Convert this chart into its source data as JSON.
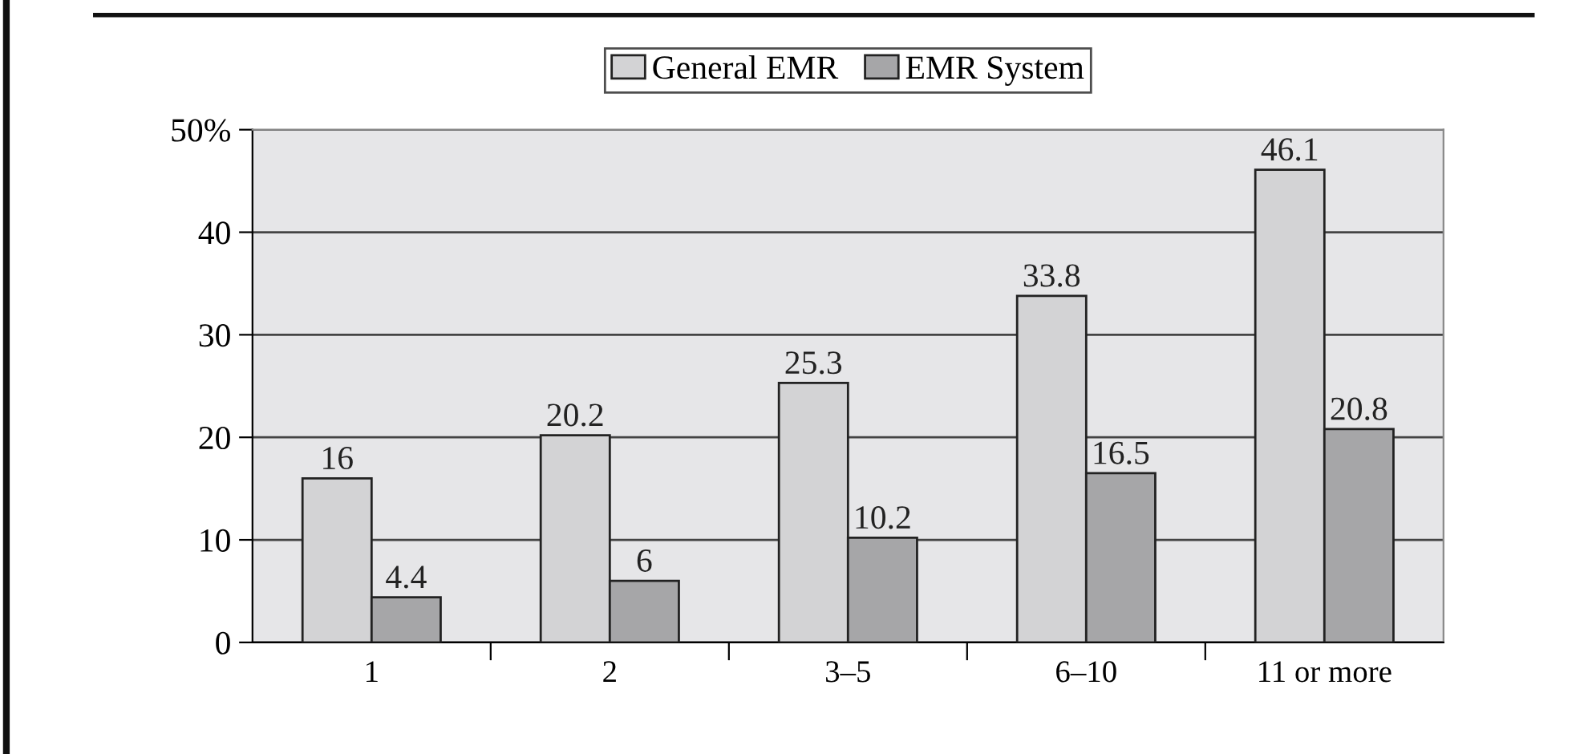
{
  "chart_data": {
    "type": "bar",
    "categories": [
      "1",
      "2",
      "3–5",
      "6–10",
      "11 or more"
    ],
    "series": [
      {
        "name": "General EMR",
        "color": "#d3d3d5",
        "values": [
          16,
          20.2,
          25.3,
          33.8,
          46.1
        ]
      },
      {
        "name": "EMR System",
        "color": "#a6a6a8",
        "values": [
          4.4,
          6,
          10.2,
          16.5,
          20.8
        ]
      }
    ],
    "ylim": [
      0,
      50
    ],
    "yticks": [
      0,
      10,
      20,
      30,
      40,
      {
        "value": 50,
        "label": "50%"
      }
    ],
    "grid": "y",
    "legend": "top",
    "data_labels": true
  }
}
